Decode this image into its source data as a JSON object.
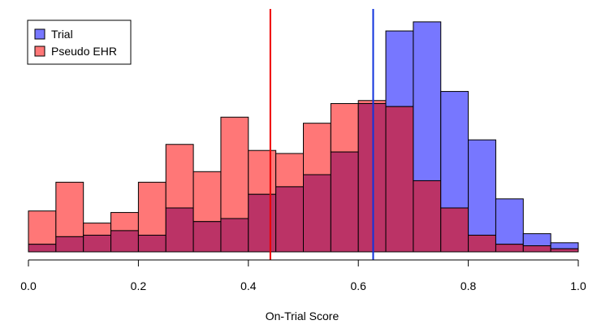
{
  "chart_data": {
    "type": "bar",
    "xlabel": "On-Trial Score",
    "xlim": [
      0.0,
      1.0
    ],
    "x_ticks": [
      "0.0",
      "0.2",
      "0.4",
      "0.6",
      "0.8",
      "1.0"
    ],
    "bin_width": 0.05,
    "bin_starts": [
      0.0,
      0.05,
      0.1,
      0.15,
      0.2,
      0.25,
      0.3,
      0.35,
      0.4,
      0.45,
      0.5,
      0.55,
      0.6,
      0.65,
      0.7,
      0.75,
      0.8,
      0.85,
      0.9,
      0.95
    ],
    "series": [
      {
        "name": "Trial",
        "color": "#7777ff",
        "values": [
          0.5,
          1.0,
          1.1,
          1.4,
          1.1,
          2.9,
          2.0,
          2.2,
          3.8,
          4.3,
          5.1,
          6.6,
          9.8,
          14.6,
          15.2,
          10.6,
          7.4,
          3.5,
          1.2,
          0.6
        ]
      },
      {
        "name": "Pseudo EHR",
        "color": "#ff7777",
        "values": [
          2.7,
          4.6,
          1.9,
          2.6,
          4.6,
          7.1,
          5.3,
          8.9,
          6.7,
          6.5,
          8.5,
          9.8,
          10.0,
          9.6,
          4.7,
          2.9,
          1.1,
          0.5,
          0.4,
          0.2
        ]
      }
    ],
    "overlap_color": "#bb3366",
    "vlines": [
      {
        "x": 0.44,
        "color": "#ee0000"
      },
      {
        "x": 0.627,
        "color": "#1133dd"
      }
    ],
    "ylim": [
      0,
      16.0
    ],
    "legend_position": "top-left",
    "grid": false
  }
}
